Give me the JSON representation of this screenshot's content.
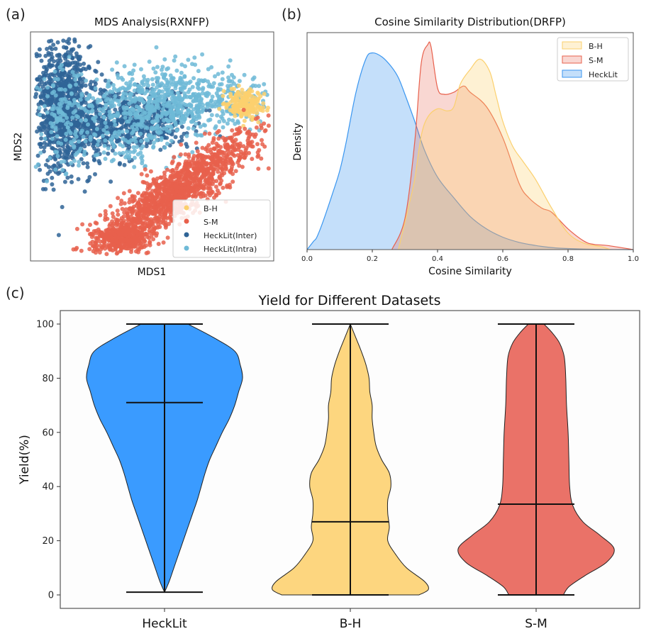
{
  "panels": {
    "a": "(a)",
    "b": "(b)",
    "c": "(c)"
  },
  "colors": {
    "bh": "#fbd06e",
    "sm": "#e8604c",
    "inter": "#2f6496",
    "intra": "#6fbad7",
    "hecklit_kde": "#3a96f0",
    "violin_hecklit": "#3a9bff",
    "violin_bh": "#fdd67f",
    "violin_sm": "#ea7268"
  },
  "chart_data": [
    {
      "id": "a",
      "type": "scatter",
      "title": "MDS Analysis(RXNFP)",
      "xlabel": "MDS1",
      "ylabel": "MDS2",
      "xlim": [
        0,
        1
      ],
      "ylim": [
        0,
        1
      ],
      "ticks_visible": false,
      "legend_position": "bottom-right",
      "legend": [
        "B-H",
        "S-M",
        "HeckLit(Inter)",
        "HeckLit(Intra)"
      ],
      "series": [
        {
          "name": "HeckLit(Inter)",
          "cluster_regions": [
            {
              "cx": 0.13,
              "cy": 0.68,
              "sx": 0.06,
              "sy": 0.14,
              "n": 900
            },
            {
              "cx": 0.3,
              "cy": 0.6,
              "sx": 0.09,
              "sy": 0.08,
              "n": 400
            },
            {
              "cx": 0.5,
              "cy": 0.62,
              "sx": 0.1,
              "sy": 0.06,
              "n": 300
            }
          ]
        },
        {
          "name": "HeckLit(Intra)",
          "cluster_regions": [
            {
              "cx": 0.6,
              "cy": 0.7,
              "sx": 0.18,
              "sy": 0.07,
              "n": 700
            },
            {
              "cx": 0.14,
              "cy": 0.62,
              "sx": 0.06,
              "sy": 0.12,
              "n": 150
            },
            {
              "cx": 0.4,
              "cy": 0.55,
              "sx": 0.1,
              "sy": 0.08,
              "n": 150
            }
          ]
        },
        {
          "name": "B-H",
          "cluster_regions": [
            {
              "cx": 0.88,
              "cy": 0.68,
              "sx": 0.04,
              "sy": 0.03,
              "n": 200
            }
          ]
        },
        {
          "name": "S-M",
          "cluster_regions": [
            {
              "cx": 0.6,
              "cy": 0.3,
              "sx": 0.15,
              "sy": 0.1,
              "n": 1400
            },
            {
              "cx": 0.38,
              "cy": 0.1,
              "sx": 0.06,
              "sy": 0.03,
              "n": 300
            }
          ]
        }
      ]
    },
    {
      "id": "b",
      "type": "area",
      "title": "Cosine Similarity Distribution(DRFP)",
      "xlabel": "Cosine Similarity",
      "ylabel": "Density",
      "xlim": [
        0.0,
        1.0
      ],
      "xticks": [
        "0.0",
        "0.2",
        "0.4",
        "0.6",
        "0.8",
        "1.0"
      ],
      "xtick_values": [
        0.0,
        0.2,
        0.4,
        0.6,
        0.8,
        1.0
      ],
      "ylim": [
        0,
        1.0
      ],
      "legend_position": "top-right",
      "series": [
        {
          "name": "HeckLit",
          "x": [
            0.0,
            0.02,
            0.03,
            0.05,
            0.08,
            0.1,
            0.12,
            0.15,
            0.18,
            0.2,
            0.23,
            0.26,
            0.28,
            0.3,
            0.33,
            0.36,
            0.4,
            0.45,
            0.5,
            0.55,
            0.6,
            0.65,
            0.7,
            0.75,
            0.8,
            0.9,
            1.0
          ],
          "y": [
            0.0,
            0.04,
            0.06,
            0.14,
            0.28,
            0.38,
            0.52,
            0.76,
            0.92,
            0.95,
            0.93,
            0.88,
            0.83,
            0.75,
            0.62,
            0.48,
            0.35,
            0.25,
            0.16,
            0.1,
            0.06,
            0.035,
            0.02,
            0.01,
            0.005,
            0.001,
            0.0
          ]
        },
        {
          "name": "S-M",
          "x": [
            0.26,
            0.3,
            0.33,
            0.35,
            0.37,
            0.38,
            0.4,
            0.42,
            0.45,
            0.48,
            0.5,
            0.55,
            0.6,
            0.65,
            0.68,
            0.72,
            0.75,
            0.8,
            0.85,
            0.88,
            0.92,
            1.0
          ],
          "y": [
            0.0,
            0.15,
            0.52,
            0.9,
            0.99,
            0.98,
            0.78,
            0.75,
            0.76,
            0.79,
            0.76,
            0.69,
            0.54,
            0.32,
            0.25,
            0.2,
            0.18,
            0.1,
            0.04,
            0.025,
            0.02,
            0.0
          ]
        },
        {
          "name": "B-H",
          "x": [
            0.28,
            0.31,
            0.33,
            0.35,
            0.37,
            0.4,
            0.43,
            0.45,
            0.47,
            0.5,
            0.53,
            0.56,
            0.58,
            0.6,
            0.63,
            0.66,
            0.7,
            0.75,
            0.8,
            0.85,
            0.9,
            0.93
          ],
          "y": [
            0.0,
            0.2,
            0.34,
            0.55,
            0.64,
            0.68,
            0.67,
            0.69,
            0.8,
            0.87,
            0.92,
            0.86,
            0.74,
            0.62,
            0.5,
            0.43,
            0.34,
            0.2,
            0.08,
            0.03,
            0.015,
            0.0
          ]
        }
      ],
      "legend": [
        "B-H",
        "S-M",
        "HeckLit"
      ]
    },
    {
      "id": "c",
      "type": "violin",
      "title": "Yield for Different Datasets",
      "xlabel": "",
      "ylabel": "Yield(%)",
      "ylim": [
        -5,
        105
      ],
      "yticks": [
        "0",
        "20",
        "40",
        "60",
        "80",
        "100"
      ],
      "ytick_values": [
        0,
        20,
        40,
        60,
        80,
        100
      ],
      "categories": [
        "HeckLit",
        "B-H",
        "S-M"
      ],
      "series": [
        {
          "name": "HeckLit",
          "min": 1,
          "max": 100,
          "median": 71,
          "profile_y": [
            1,
            5,
            10,
            15,
            20,
            25,
            30,
            35,
            40,
            45,
            50,
            55,
            60,
            65,
            70,
            75,
            80,
            85,
            90,
            95,
            100
          ],
          "profile_w": [
            0.0,
            0.06,
            0.12,
            0.18,
            0.24,
            0.3,
            0.36,
            0.42,
            0.47,
            0.52,
            0.58,
            0.66,
            0.74,
            0.83,
            0.9,
            0.95,
            1.0,
            0.97,
            0.9,
            0.63,
            0.3
          ]
        },
        {
          "name": "B-H",
          "min": 0,
          "max": 100,
          "median": 27,
          "profile_y": [
            0,
            2,
            5,
            10,
            15,
            20,
            25,
            30,
            35,
            40,
            45,
            50,
            55,
            60,
            65,
            70,
            75,
            80,
            85,
            90,
            95,
            100
          ],
          "profile_w": [
            0.88,
            1.0,
            0.95,
            0.72,
            0.58,
            0.48,
            0.5,
            0.48,
            0.48,
            0.52,
            0.5,
            0.4,
            0.33,
            0.3,
            0.28,
            0.28,
            0.25,
            0.24,
            0.2,
            0.14,
            0.07,
            0.0
          ]
        },
        {
          "name": "S-M",
          "min": 0,
          "max": 100,
          "median": 33.5,
          "profile_y": [
            0,
            3,
            7,
            12,
            17,
            22,
            27,
            33,
            40,
            50,
            60,
            70,
            80,
            88,
            93,
            97,
            100
          ],
          "profile_w": [
            0.35,
            0.42,
            0.62,
            0.9,
            1.0,
            0.82,
            0.6,
            0.47,
            0.43,
            0.42,
            0.41,
            0.39,
            0.38,
            0.36,
            0.3,
            0.2,
            0.1
          ]
        }
      ]
    }
  ]
}
